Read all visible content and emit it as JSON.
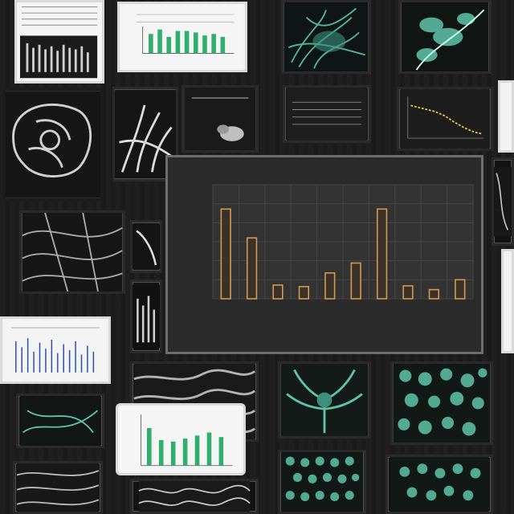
{
  "colors": {
    "background": "#1c1c1c",
    "panel": "#2b2b2b",
    "bar_fill": "#3a3128",
    "bar_stroke": "#d19a52",
    "accent_green": "#2fae6c",
    "accent_teal": "#5fc4a8"
  },
  "chart_data": {
    "type": "bar",
    "title": "",
    "xlabel": "",
    "ylabel": "",
    "categories": [
      "",
      "",
      "",
      "",
      "",
      "",
      "",
      "",
      "",
      ""
    ],
    "values": [
      118,
      80,
      18,
      16,
      34,
      47,
      118,
      17,
      12,
      25
    ],
    "ylim": [
      0,
      150
    ],
    "grid": true
  }
}
